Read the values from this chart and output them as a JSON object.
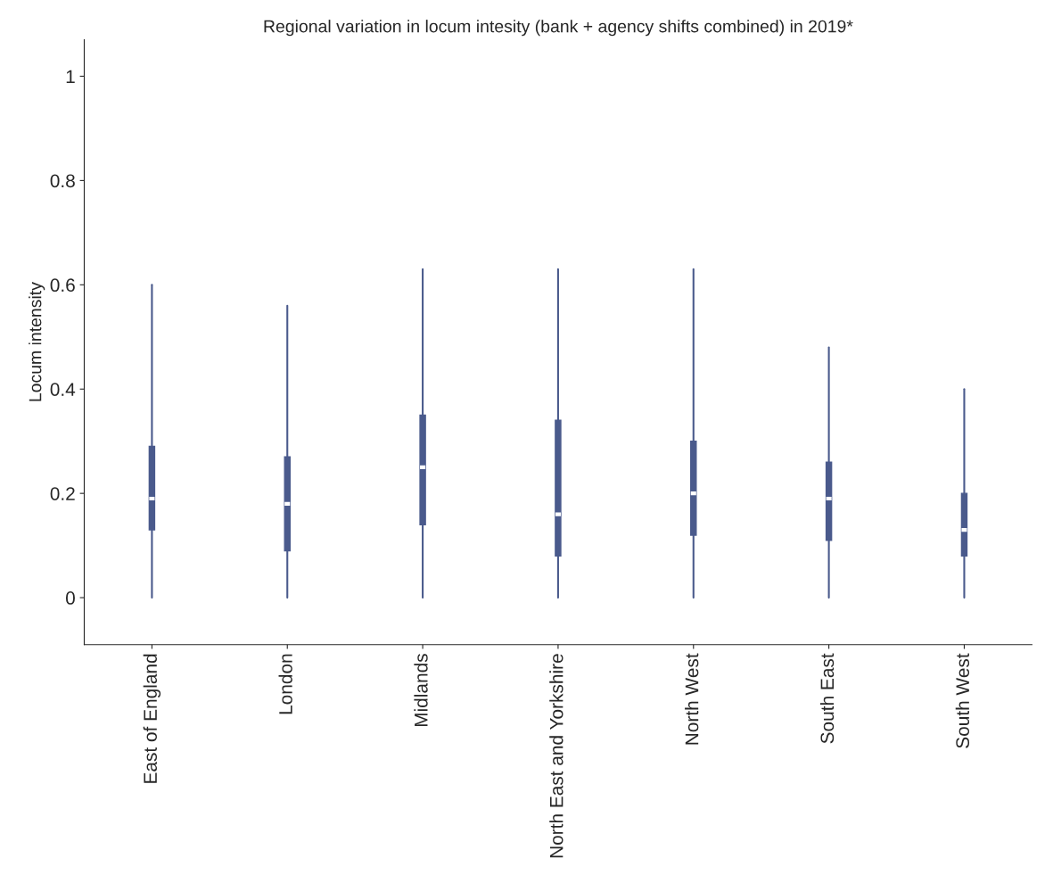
{
  "chart_data": {
    "type": "box",
    "title": "Regional variation in locum intesity (bank + agency shifts combined) in 2019*",
    "ylabel": "Locum intensity",
    "categories": [
      "East of England",
      "London",
      "Midlands",
      "North East and Yorkshire",
      "North West",
      "South East",
      "South West"
    ],
    "boxes": [
      {
        "low": 0,
        "q1": 0.13,
        "median": 0.19,
        "q3": 0.29,
        "high": 0.6
      },
      {
        "low": 0,
        "q1": 0.09,
        "median": 0.18,
        "q3": 0.27,
        "high": 0.56
      },
      {
        "low": 0,
        "q1": 0.14,
        "median": 0.25,
        "q3": 0.35,
        "high": 0.63
      },
      {
        "low": 0,
        "q1": 0.08,
        "median": 0.16,
        "q3": 0.34,
        "high": 0.63
      },
      {
        "low": 0,
        "q1": 0.12,
        "median": 0.2,
        "q3": 0.3,
        "high": 0.63
      },
      {
        "low": 0,
        "q1": 0.11,
        "median": 0.19,
        "q3": 0.26,
        "high": 0.48
      },
      {
        "low": 0,
        "q1": 0.08,
        "median": 0.13,
        "q3": 0.2,
        "high": 0.4
      }
    ],
    "color": "#4a5a8c",
    "ylim": [
      -0.09,
      1.07
    ],
    "yticks": [
      0,
      0.2,
      0.4,
      0.6,
      0.8,
      1
    ],
    "grid": false
  }
}
